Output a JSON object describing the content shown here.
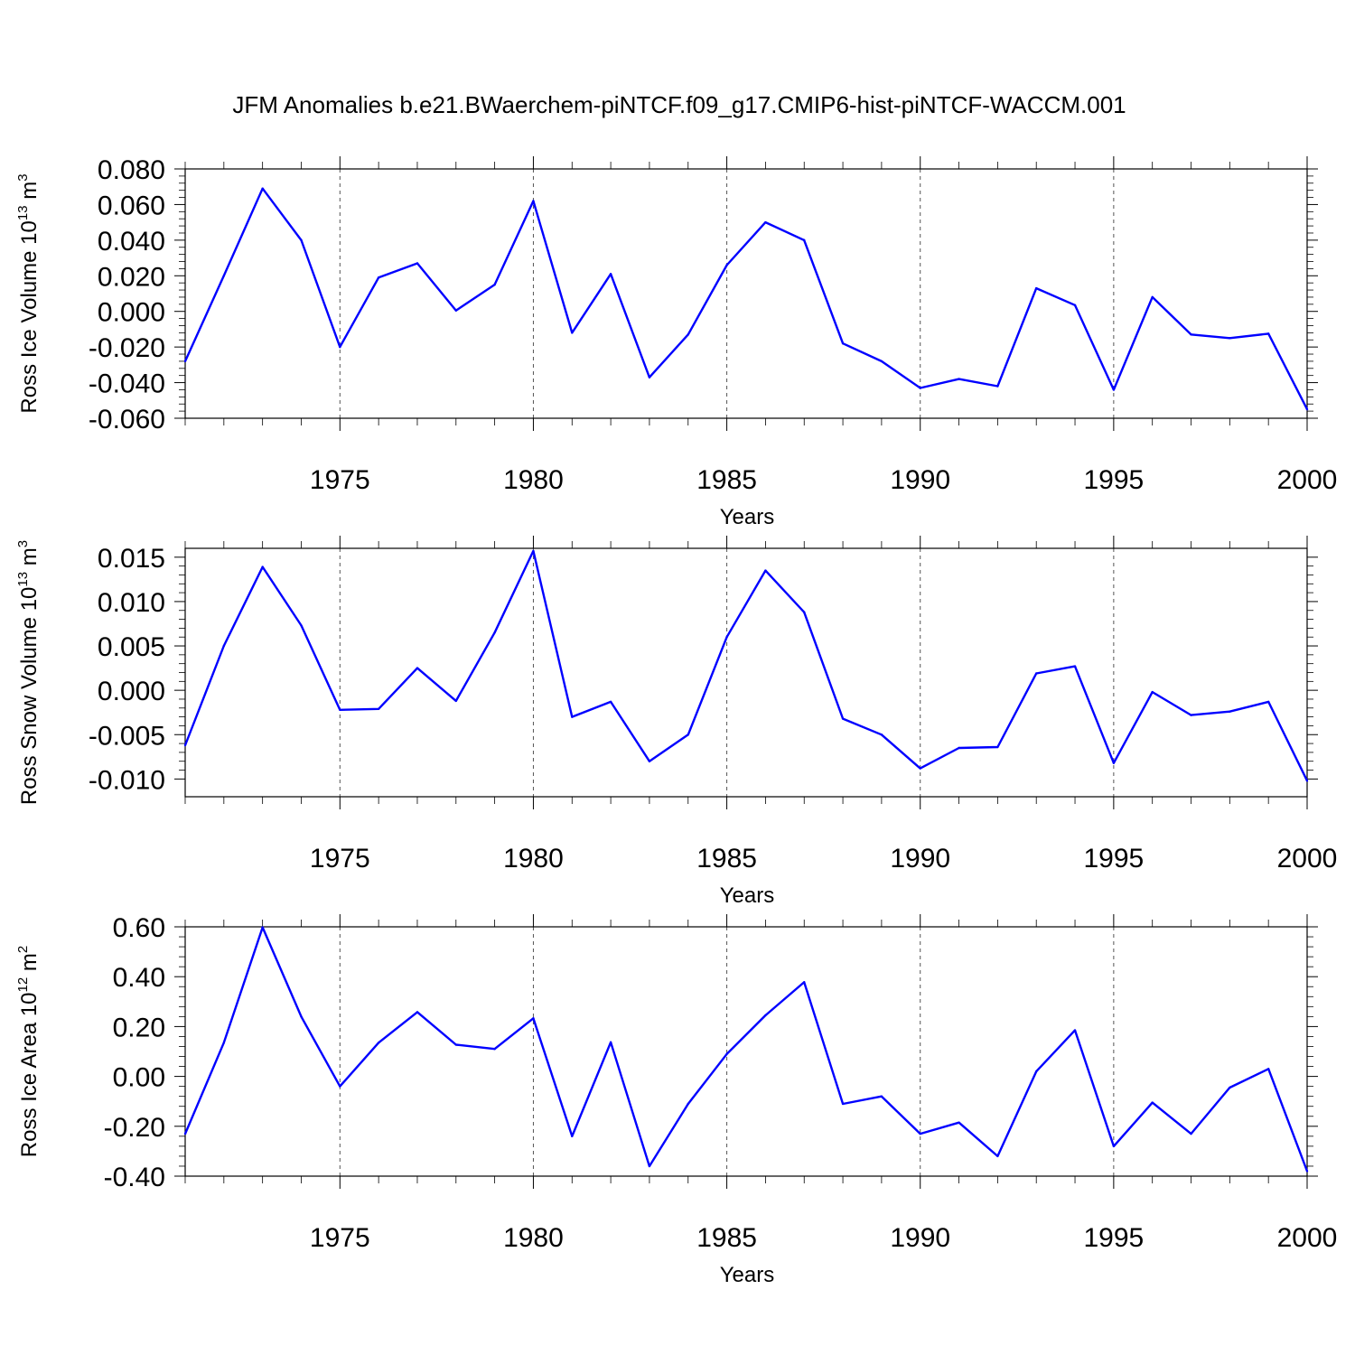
{
  "title": "JFM Anomalies b.e21.BWaerchem-piNTCF.f09_g17.CMIP6-hist-piNTCF-WACCM.001",
  "line_color": "#0000ff",
  "chart_data": [
    {
      "type": "line",
      "ylabel": "Ross Ice Volume 10",
      "ylabel_exp": "13",
      "ylabel_unit": " m",
      "ylabel_unit_exp": "3",
      "xlabel": "Years",
      "xlim": [
        1971,
        2000
      ],
      "ylim": [
        -0.06,
        0.08
      ],
      "xticks": [
        1975,
        1980,
        1985,
        1990,
        1995,
        2000
      ],
      "yticks": [
        -0.06,
        -0.04,
        -0.02,
        0.0,
        0.02,
        0.04,
        0.06,
        0.08
      ],
      "ytick_labels": [
        "-0.060",
        "-0.040",
        "-0.020",
        "0.000",
        "0.020",
        "0.040",
        "0.060",
        "0.080"
      ],
      "x": [
        1971,
        1972,
        1973,
        1974,
        1975,
        1976,
        1977,
        1978,
        1979,
        1980,
        1981,
        1982,
        1983,
        1984,
        1985,
        1986,
        1987,
        1988,
        1989,
        1990,
        1991,
        1992,
        1993,
        1994,
        1995,
        1996,
        1997,
        1998,
        1999,
        2000
      ],
      "y": [
        -0.028,
        0.02,
        0.069,
        0.04,
        -0.02,
        0.019,
        0.027,
        0.0005,
        0.015,
        0.062,
        -0.012,
        0.021,
        -0.037,
        -0.013,
        0.026,
        0.05,
        0.04,
        -0.018,
        -0.028,
        -0.043,
        -0.038,
        -0.042,
        0.013,
        0.0035,
        -0.044,
        0.008,
        -0.013,
        -0.015,
        -0.0125,
        -0.055
      ]
    },
    {
      "type": "line",
      "ylabel": "Ross Snow Volume 10",
      "ylabel_exp": "13",
      "ylabel_unit": " m",
      "ylabel_unit_exp": "3",
      "xlabel": "Years",
      "xlim": [
        1971,
        2000
      ],
      "ylim": [
        -0.012,
        0.016
      ],
      "xticks": [
        1975,
        1980,
        1985,
        1990,
        1995,
        2000
      ],
      "yticks": [
        -0.01,
        -0.005,
        0.0,
        0.005,
        0.01,
        0.015
      ],
      "ytick_labels": [
        "-0.010",
        "-0.005",
        "0.000",
        "0.005",
        "0.010",
        "0.015"
      ],
      "x": [
        1971,
        1972,
        1973,
        1974,
        1975,
        1976,
        1977,
        1978,
        1979,
        1980,
        1981,
        1982,
        1983,
        1984,
        1985,
        1986,
        1987,
        1988,
        1989,
        1990,
        1991,
        1992,
        1993,
        1994,
        1995,
        1996,
        1997,
        1998,
        1999,
        2000
      ],
      "y": [
        -0.0062,
        0.005,
        0.0139,
        0.0073,
        -0.0022,
        -0.0021,
        0.0025,
        -0.0012,
        0.0065,
        0.0157,
        -0.003,
        -0.0013,
        -0.008,
        -0.005,
        0.006,
        0.0135,
        0.0088,
        -0.0032,
        -0.005,
        -0.0088,
        -0.0065,
        -0.0064,
        0.0019,
        0.0027,
        -0.0082,
        -0.0002,
        -0.0028,
        -0.0024,
        -0.0013,
        -0.0102
      ]
    },
    {
      "type": "line",
      "ylabel": "Ross Ice Area 10",
      "ylabel_exp": "12",
      "ylabel_unit": " m",
      "ylabel_unit_exp": "2",
      "xlabel": "Years",
      "xlim": [
        1971,
        2000
      ],
      "ylim": [
        -0.4,
        0.6
      ],
      "xticks": [
        1975,
        1980,
        1985,
        1990,
        1995,
        2000
      ],
      "yticks": [
        -0.4,
        -0.2,
        0.0,
        0.2,
        0.4,
        0.6
      ],
      "ytick_labels": [
        "-0.40",
        "-0.20",
        "0.00",
        "0.20",
        "0.40",
        "0.60"
      ],
      "x": [
        1971,
        1972,
        1973,
        1974,
        1975,
        1976,
        1977,
        1978,
        1979,
        1980,
        1981,
        1982,
        1983,
        1984,
        1985,
        1986,
        1987,
        1988,
        1989,
        1990,
        1991,
        1992,
        1993,
        1994,
        1995,
        1996,
        1997,
        1998,
        1999,
        2000
      ],
      "y": [
        -0.23,
        0.135,
        0.598,
        0.24,
        -0.04,
        0.135,
        0.258,
        0.127,
        0.11,
        0.233,
        -0.24,
        0.137,
        -0.36,
        -0.11,
        0.09,
        0.245,
        0.378,
        -0.11,
        -0.08,
        -0.23,
        -0.185,
        -0.32,
        0.02,
        0.185,
        -0.28,
        -0.105,
        -0.23,
        -0.045,
        0.03,
        -0.38
      ]
    }
  ]
}
